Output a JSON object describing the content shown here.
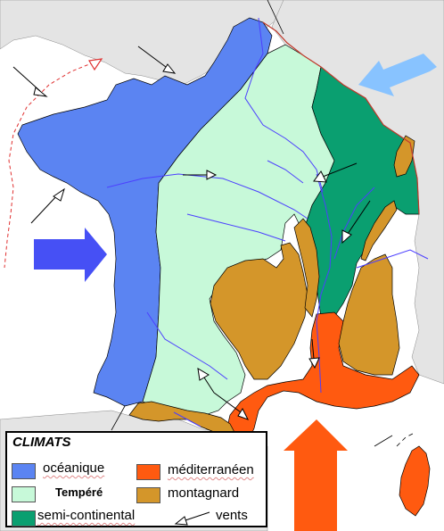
{
  "colors": {
    "background_land": "#ffffff",
    "foreign_land": "#e4e4e4",
    "oceanique": "#5b84f2",
    "tempere": "#c7f9d9",
    "semi_continental": "#0a9f70",
    "mediterraneen": "#ff5a10",
    "montagnard": "#d4962a",
    "rivers": "#4c3fff",
    "border_red": "#c0392b",
    "arrow_west": "#4650f5",
    "arrow_northeast": "#88c3ff",
    "arrow_south": "#ff5a10"
  },
  "legend": {
    "title": "CLIMATS",
    "items": [
      {
        "key": "oceanique",
        "label": "océanique"
      },
      {
        "key": "tempere",
        "label": "Tempéré"
      },
      {
        "key": "semi_continental",
        "label": "semi-continental"
      },
      {
        "key": "mediterraneen",
        "label": "méditerranéen"
      },
      {
        "key": "montagnard",
        "label": "montagnard"
      },
      {
        "key": "vents",
        "label": "vents"
      }
    ]
  },
  "icons": [
    "wind-arrow-icon",
    "big-wind-arrow-icon"
  ]
}
